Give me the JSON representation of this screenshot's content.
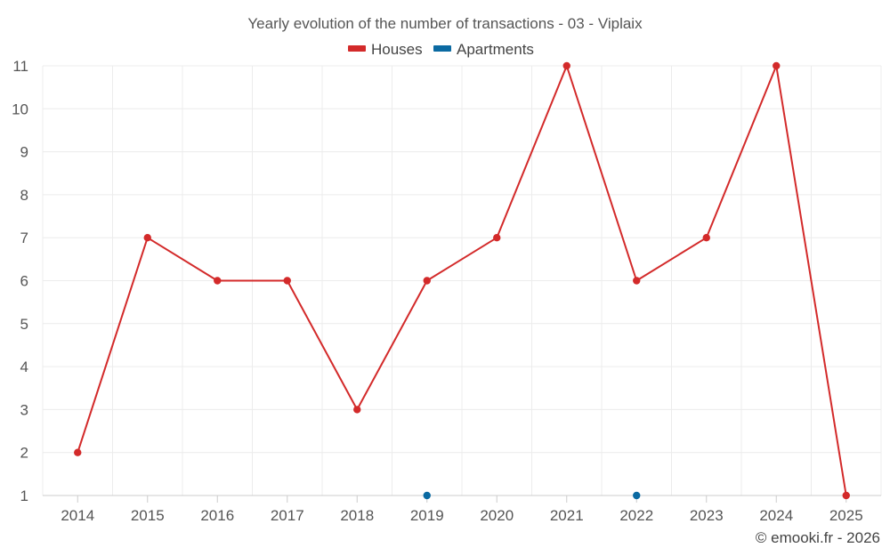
{
  "chart_data": {
    "type": "line",
    "title": "Yearly evolution of the number of transactions - 03 - Viplaix",
    "categories": [
      "2014",
      "2015",
      "2016",
      "2017",
      "2018",
      "2019",
      "2020",
      "2021",
      "2022",
      "2023",
      "2024",
      "2025"
    ],
    "ylim": [
      1,
      11
    ],
    "yticks": [
      "1",
      "2",
      "3",
      "4",
      "5",
      "6",
      "7",
      "8",
      "9",
      "10",
      "11"
    ],
    "grid": true,
    "legend_position": "top-center",
    "series": [
      {
        "name": "Houses",
        "color": "#d32a2a",
        "line": true,
        "values": [
          2,
          7,
          6,
          6,
          3,
          6,
          7,
          11,
          6,
          7,
          11,
          1
        ]
      },
      {
        "name": "Apartments",
        "color": "#0b6aa2",
        "line": false,
        "values": [
          null,
          null,
          null,
          null,
          null,
          1,
          null,
          null,
          1,
          null,
          null,
          null
        ]
      }
    ]
  },
  "credit": "© emooki.fr - 2026"
}
